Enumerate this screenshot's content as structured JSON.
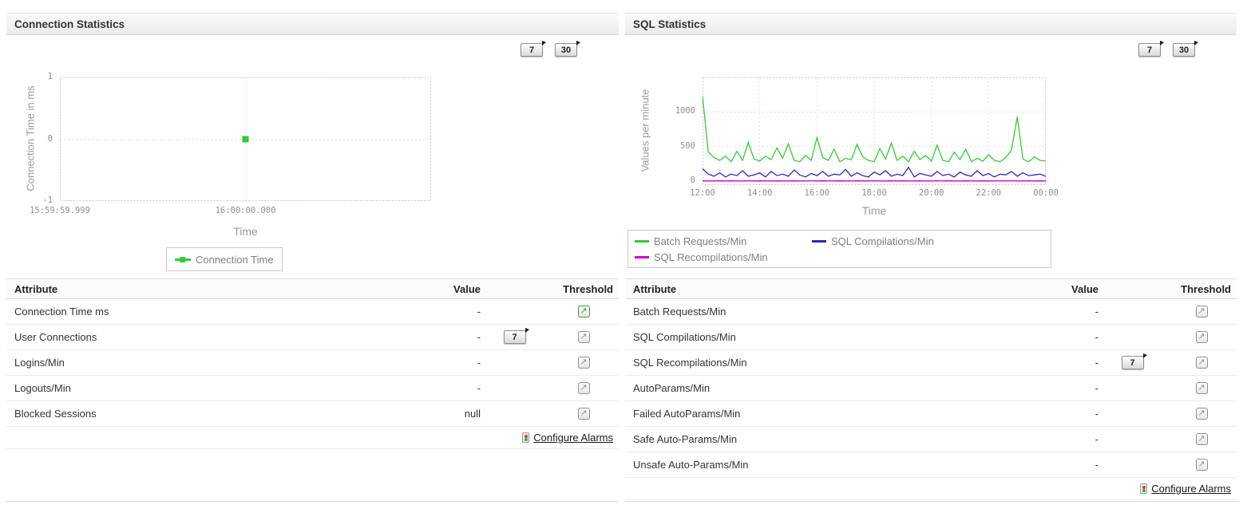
{
  "colors": {
    "batch_requests_green": "#33cc33",
    "sql_compilations_blue": "#2a2ab8",
    "sql_recompilations_magenta": "#cc00cc",
    "threshold_active_green": "#2ca02c",
    "threshold_inactive_gray": "#8f8f8f"
  },
  "left_panel": {
    "title": "Connection Statistics",
    "period_buttons": {
      "seven": "7",
      "thirty": "30"
    },
    "table": {
      "headers": {
        "attribute": "Attribute",
        "value": "Value",
        "threshold": "Threshold"
      },
      "rows": [
        {
          "attribute": "Connection Time ms",
          "value": "-"
        },
        {
          "attribute": "User Connections",
          "value": "-",
          "period_button": "7"
        },
        {
          "attribute": "Logins/Min",
          "value": "-"
        },
        {
          "attribute": "Logouts/Min",
          "value": "-"
        },
        {
          "attribute": "Blocked Sessions",
          "value": "null"
        }
      ]
    },
    "configure_alarms": "Configure Alarms"
  },
  "right_panel": {
    "title": "SQL Statistics",
    "period_buttons": {
      "seven": "7",
      "thirty": "30"
    },
    "table": {
      "headers": {
        "attribute": "Attribute",
        "value": "Value",
        "threshold": "Threshold"
      },
      "rows": [
        {
          "attribute": "Batch Requests/Min",
          "value": "-"
        },
        {
          "attribute": "SQL Compilations/Min",
          "value": "-"
        },
        {
          "attribute": "SQL Recompilations/Min",
          "value": "-",
          "period_button": "7"
        },
        {
          "attribute": "AutoParams/Min",
          "value": "-"
        },
        {
          "attribute": "Failed AutoParams/Min",
          "value": "-"
        },
        {
          "attribute": "Safe Auto-Params/Min",
          "value": "-"
        },
        {
          "attribute": "Unsafe Auto-Params/Min",
          "value": "-"
        }
      ]
    },
    "configure_alarms": "Configure Alarms"
  },
  "chart_data": [
    {
      "type": "scatter",
      "title": "Connection Time",
      "xlabel": "Time",
      "ylabel": "Connection Time in ms",
      "ylim": [
        -1,
        1
      ],
      "grid": true,
      "y_ticks": [
        {
          "label": "1",
          "value": 1
        },
        {
          "label": "0",
          "value": 0
        },
        {
          "label": "-1",
          "value": -1
        }
      ],
      "x_ticks": [
        {
          "label": "15:59:59.999",
          "pos": 0
        },
        {
          "label": "16:00:00.000",
          "pos": 0.5
        }
      ],
      "points": [
        {
          "x": "16:00:00.000",
          "y": 0,
          "pos": 0.5
        }
      ],
      "point_color": "#33cc33",
      "legend": [
        {
          "label": "Connection Time",
          "color": "#33cc33"
        }
      ],
      "legend_position": "bottom"
    },
    {
      "type": "line",
      "title": "SQL Statistics",
      "xlabel": "Time",
      "ylabel": "Values per minute",
      "ylim": [
        0,
        1500
      ],
      "bottom_pad": 5,
      "grid": true,
      "y_ticks": [
        {
          "label": "0",
          "value": 0
        },
        {
          "label": "500",
          "value": 500
        },
        {
          "label": "1000",
          "value": 1000
        }
      ],
      "x_ticks": [
        {
          "label": "12:00",
          "pos": 0
        },
        {
          "label": "14:00",
          "pos": 0.1667
        },
        {
          "label": "16:00",
          "pos": 0.3333
        },
        {
          "label": "18:00",
          "pos": 0.5
        },
        {
          "label": "20:00",
          "pos": 0.6667
        },
        {
          "label": "22:00",
          "pos": 0.8333
        },
        {
          "label": "00:00",
          "pos": 1
        }
      ],
      "legend_position": "bottom",
      "series": [
        {
          "name": "Batch Requests/Min",
          "color": "#33cc33",
          "values": [
            1230,
            420,
            340,
            300,
            360,
            280,
            430,
            300,
            560,
            320,
            290,
            360,
            310,
            480,
            330,
            540,
            300,
            280,
            370,
            300,
            630,
            340,
            300,
            460,
            280,
            330,
            310,
            530,
            350,
            300,
            280,
            470,
            320,
            550,
            300,
            360,
            280,
            430,
            310,
            370,
            290,
            520,
            300,
            280,
            420,
            310,
            460,
            280,
            330,
            290,
            380,
            300,
            280,
            340,
            450,
            930,
            320,
            280,
            350,
            300,
            290
          ]
        },
        {
          "name": "SQL Compilations/Min",
          "color": "#2a2ab8",
          "values": [
            180,
            100,
            70,
            120,
            60,
            100,
            80,
            150,
            70,
            90,
            120,
            60,
            140,
            80,
            100,
            70,
            160,
            90,
            60,
            110,
            80,
            140,
            70,
            100,
            90,
            170,
            70,
            120,
            80,
            60,
            130,
            90,
            150,
            70,
            100,
            80,
            200,
            60,
            110,
            90,
            70,
            140,
            80,
            100,
            60,
            130,
            90,
            70,
            150,
            80,
            110,
            60,
            100,
            90,
            140,
            70,
            120,
            80,
            90,
            100,
            70
          ]
        },
        {
          "name": "SQL Recompilations/Min",
          "color": "#cc00cc",
          "values": [
            3,
            2,
            2,
            4,
            2,
            3,
            2,
            2,
            5,
            2,
            3,
            2,
            2,
            4,
            2,
            2,
            3,
            2,
            2,
            5,
            2,
            3,
            2,
            2,
            4,
            2,
            2,
            3,
            2,
            2,
            5,
            2,
            2,
            3,
            2,
            4,
            2,
            2,
            3,
            2,
            2,
            5,
            2,
            3,
            2,
            2,
            4,
            2,
            2,
            3,
            2,
            2,
            5,
            2,
            3,
            2,
            2,
            4,
            2,
            3,
            2
          ]
        }
      ]
    }
  ]
}
